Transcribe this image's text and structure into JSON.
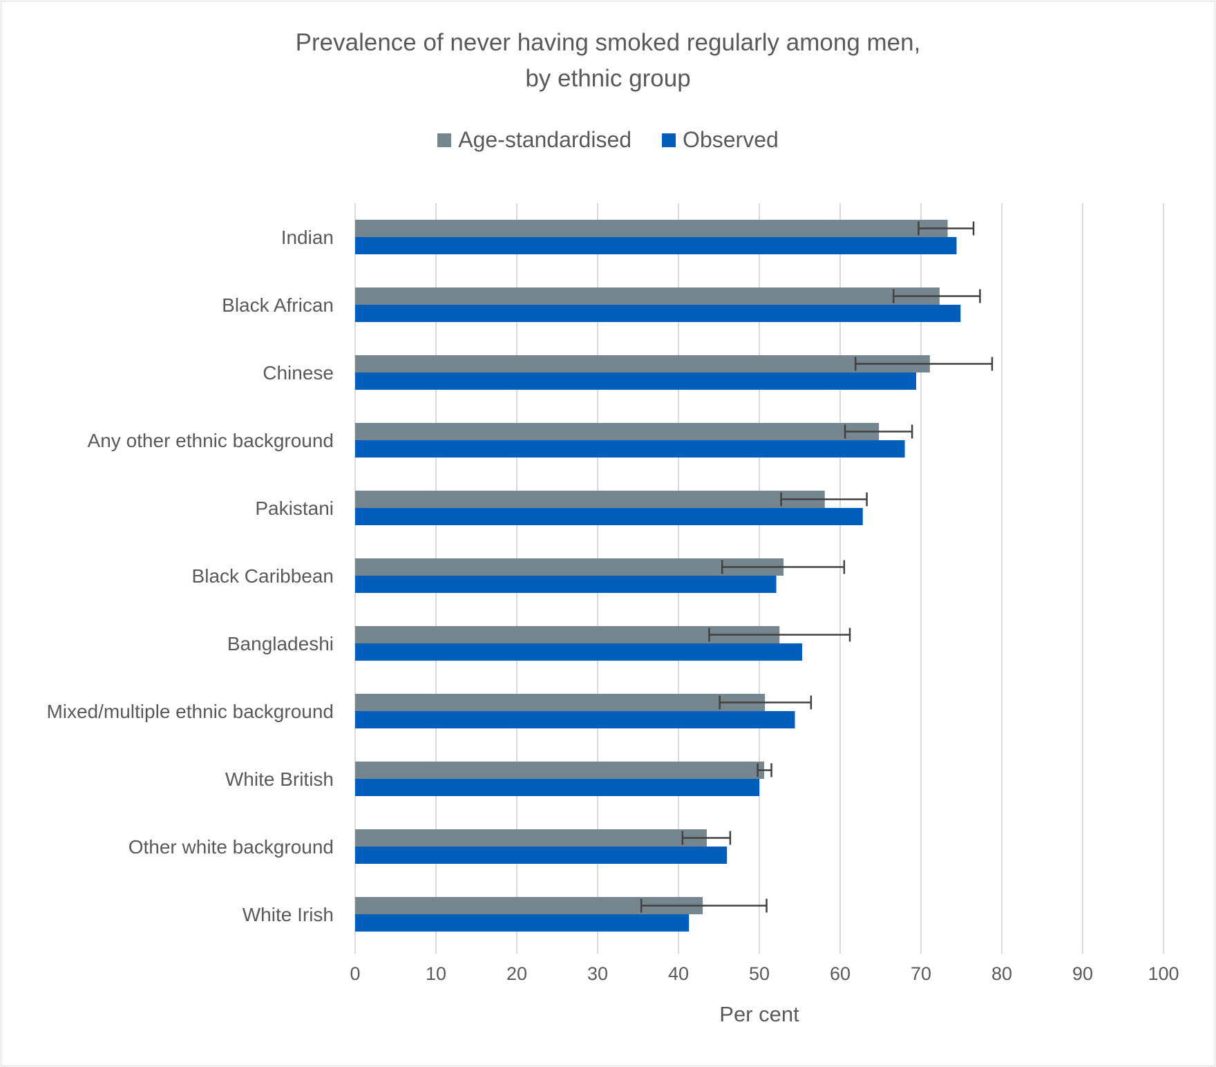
{
  "chart_data": {
    "type": "bar",
    "orientation": "horizontal",
    "title_lines": [
      "Prevalence of never having smoked regularly among men,",
      "by ethnic group"
    ],
    "xlabel": "Per cent",
    "ylabel": "",
    "xlim": [
      0,
      100
    ],
    "xticks": [
      0,
      10,
      20,
      30,
      40,
      50,
      60,
      70,
      80,
      90,
      100
    ],
    "grid": true,
    "legend_position": "top",
    "categories": [
      "Indian",
      "Black African",
      "Chinese",
      "Any other ethnic background",
      "Pakistani",
      "Black Caribbean",
      "Bangladeshi",
      "Mixed/multiple ethnic background",
      "White British",
      "Other white background",
      "White Irish"
    ],
    "series": [
      {
        "name": "Age-standardised",
        "color": "#76868f",
        "values": [
          73.3,
          72.3,
          71.1,
          64.8,
          58.1,
          53.0,
          52.5,
          50.7,
          50.6,
          43.5,
          43.0
        ],
        "error_low": [
          69.7,
          66.6,
          61.9,
          60.6,
          52.7,
          45.4,
          43.8,
          45.1,
          49.8,
          40.5,
          35.4
        ],
        "error_high": [
          76.5,
          77.3,
          78.8,
          68.9,
          63.3,
          60.5,
          61.2,
          56.4,
          51.5,
          46.4,
          50.9
        ]
      },
      {
        "name": "Observed",
        "color": "#005ebb",
        "values": [
          74.4,
          74.9,
          69.4,
          68.0,
          62.8,
          52.1,
          55.3,
          54.4,
          50.0,
          46.0,
          41.3
        ]
      }
    ]
  }
}
